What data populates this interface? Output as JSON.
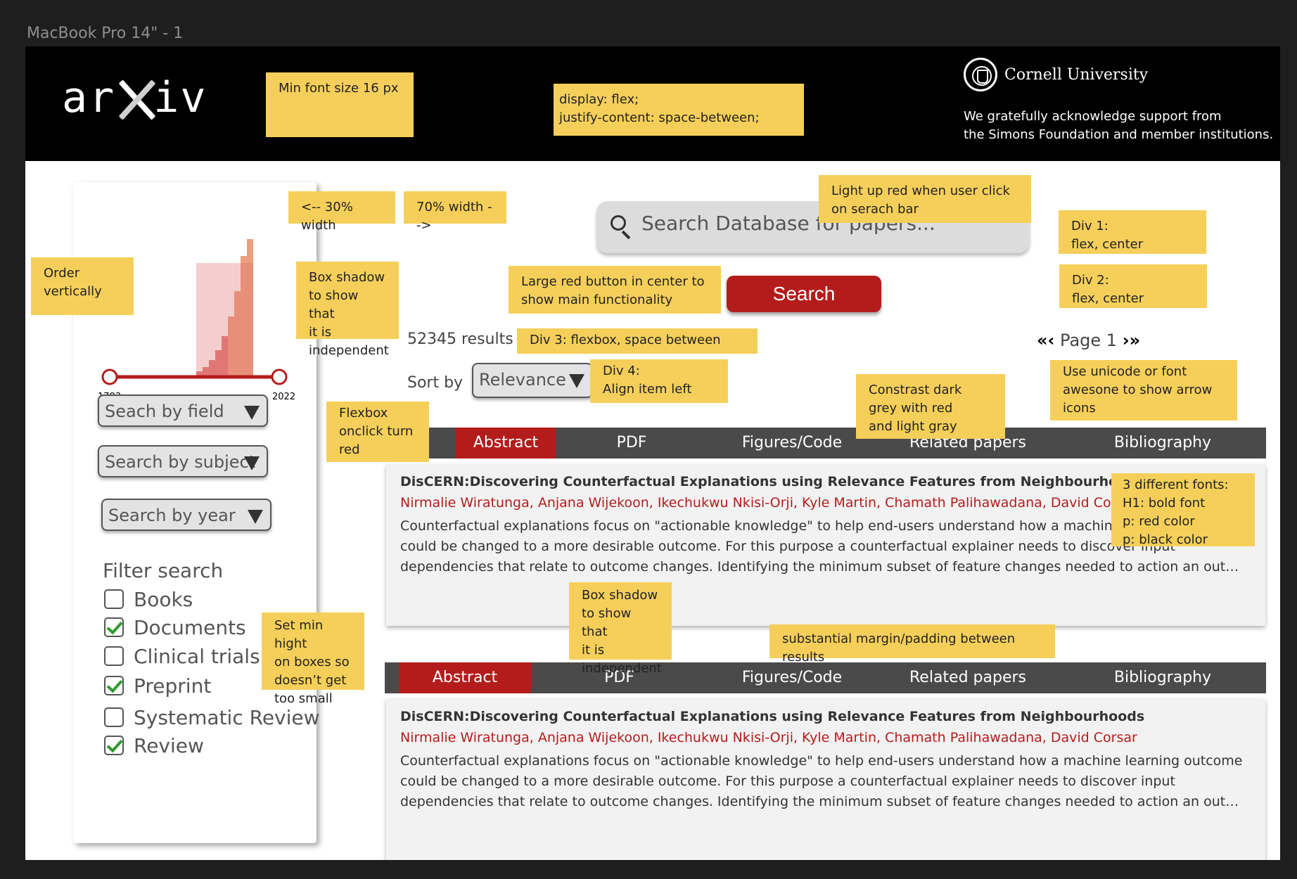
{
  "frame": {
    "label": "MacBook Pro 14\" - 1"
  },
  "header": {
    "logo": {
      "pre": "ar",
      "x": "x",
      "post": "iv"
    },
    "institution": "Cornell University",
    "ack_line1": "We gratefully acknowledge support from",
    "ack_line2": "the Simons Foundation and member institutions."
  },
  "notes": {
    "font": "Min font size 16 px",
    "flex": "display: flex;\n justify-content: space-between;",
    "width30": "<-- 30% width",
    "width70": "70% width -->",
    "search_red": "Light up red when user click on serach bar",
    "div1": "Div 1:\nflex, center",
    "div2": "Div 2:\nflex, center",
    "order": "Order\nvertically",
    "shadow1": "Box shadow\nto show that\nit is\nindependent",
    "red_button": "Large red button in center to\nshow main functionality",
    "div3": "Div 3: flexbox, space between",
    "div4": "Div 4:\nAlign item left",
    "unicode": "Use unicode or font\nawesone to show arrow\nicons",
    "contrast": "Constrast dark\ngrey with red\nand light gray",
    "flexbox_red": "Flexbox\nonclick turn\nred",
    "fonts": "3 different fonts:\nH1: bold font\np: red color\np: black color",
    "shadow2": "Box shadow\nto show that\nit is\nindependent",
    "min_height": "Set min hight\non boxes so\ndoesn’t get\ntoo small",
    "margin": "substantial margin/padding between results"
  },
  "sidebar": {
    "year_start": "1783",
    "year_end": "2022",
    "dropdowns": [
      "Seach by field",
      "Search by subject",
      "Search by year"
    ],
    "filter_title": "Filter search",
    "filters": [
      {
        "label": "Books",
        "checked": false
      },
      {
        "label": "Documents",
        "checked": true
      },
      {
        "label": "Clinical trials",
        "checked": false
      },
      {
        "label": "Preprint",
        "checked": true
      },
      {
        "label": "Systematic Review",
        "checked": false
      },
      {
        "label": "Review",
        "checked": true
      }
    ]
  },
  "search": {
    "placeholder": "Search Database for papers...",
    "button": "Search"
  },
  "results": {
    "count": "52345 results",
    "sort_label": "Sort by",
    "sort_value": "Relevance",
    "page_label": "Page 1",
    "icons": {
      "first": "double-chevron-left-icon",
      "prev": "chevron-left-icon",
      "next": "chevron-right-icon",
      "last": "double-chevron-right-icon"
    }
  },
  "tabs": [
    "Abstract",
    "PDF",
    "Figures/Code",
    "Related papers",
    "Bibliography"
  ],
  "papers": [
    {
      "title": "DisCERN:Discovering Counterfactual Explanations using Relevance Features from Neighbourhoods",
      "authors": "Nirmalie Wiratunga, Anjana Wijekoon, Ikechukwu Nkisi-Orji, Kyle Martin, Chamath Palihawadana, David Corsar",
      "abstract": "Counterfactual explanations focus on \"actionable knowledge\" to help end-users understand how a machine learning outcome could be changed to a more desirable outcome. For this purpose a counterfactual explainer needs to discover input dependencies that relate to outcome changes. Identifying the minimum subset of feature changes needed to action an out…"
    },
    {
      "title": "DisCERN:Discovering Counterfactual Explanations using Relevance Features from Neighbourhoods",
      "authors": "Nirmalie Wiratunga, Anjana Wijekoon, Ikechukwu Nkisi-Orji, Kyle Martin, Chamath Palihawadana, David Corsar",
      "abstract": "Counterfactual explanations focus on \"actionable knowledge\" to help end-users understand how a machine learning outcome could be changed to a more desirable outcome. For this purpose a counterfactual explainer needs to discover input dependencies that relate to outcome changes. Identifying the minimum subset of feature changes needed to action an out…"
    }
  ],
  "colors": {
    "accent": "#b41c1c",
    "dark_grey": "#4a4a4a",
    "note": "#f5cf5a"
  }
}
